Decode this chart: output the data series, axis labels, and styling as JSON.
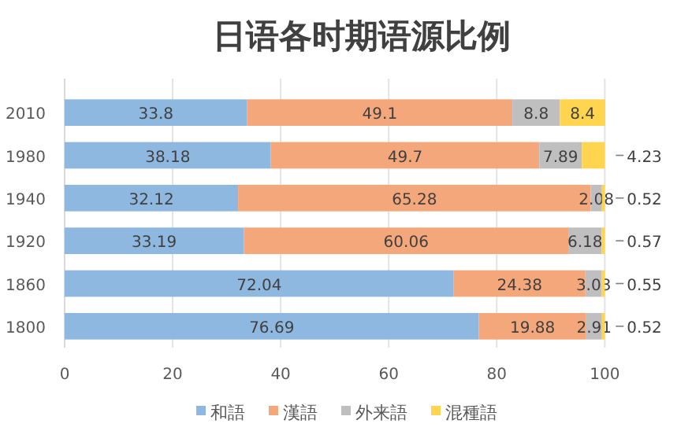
{
  "chart_data": {
    "type": "bar",
    "orientation": "horizontal",
    "stacked": true,
    "title": "日语各时期语源比例",
    "categories": [
      "2010",
      "1980",
      "1940",
      "1920",
      "1860",
      "1800"
    ],
    "series": [
      {
        "name": "和語",
        "color": "#8fb8e0",
        "values": [
          33.8,
          38.18,
          32.12,
          33.19,
          72.04,
          76.69
        ]
      },
      {
        "name": "漢語",
        "color": "#f4a77a",
        "values": [
          49.1,
          49.7,
          65.28,
          60.06,
          24.38,
          19.88
        ]
      },
      {
        "name": "外来語",
        "color": "#bfbfbf",
        "values": [
          8.8,
          7.89,
          2.08,
          6.18,
          3.03,
          2.91
        ]
      },
      {
        "name": "混種語",
        "color": "#ffd54f",
        "values": [
          8.4,
          4.23,
          0.52,
          0.57,
          0.55,
          0.52
        ]
      }
    ],
    "xlim": [
      0,
      100.1
    ],
    "xticks": [
      0,
      20,
      40,
      60,
      80,
      100
    ],
    "grid": "x",
    "legend": "bottom",
    "data_labels": true
  }
}
